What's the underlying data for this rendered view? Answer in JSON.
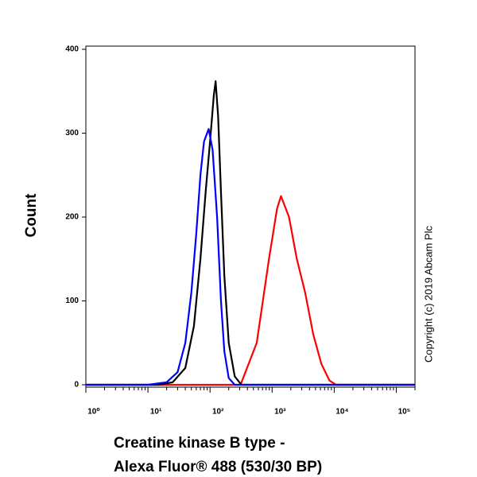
{
  "chart_data": {
    "type": "line",
    "ylabel": "Count",
    "xlabel": [
      "Creatine kinase B type -",
      "Alexa Fluor® 488 (530/30 BP)"
    ],
    "annotation": "Copyright (c) 2019 Abcam Plc",
    "xscale": "log",
    "xlim": [
      1,
      200000
    ],
    "ylim": [
      0,
      400
    ],
    "xticks": [
      {
        "value": 1,
        "label": "10⁰"
      },
      {
        "value": 10,
        "label": "10¹"
      },
      {
        "value": 100,
        "label": "10²"
      },
      {
        "value": 1000,
        "label": "10³"
      },
      {
        "value": 10000,
        "label": "10⁴"
      },
      {
        "value": 100000,
        "label": "10⁵"
      }
    ],
    "yticks": [
      0,
      100,
      200,
      300,
      400
    ],
    "series": [
      {
        "color": "#ff0000",
        "x": [
          1,
          310,
          565,
          890,
          1200,
          1390,
          1870,
          2500,
          3400,
          4600,
          6200,
          8400,
          10700,
          200000
        ],
        "values": [
          0,
          0,
          50,
          150,
          210,
          225,
          200,
          150,
          110,
          60,
          25,
          5,
          0,
          0
        ]
      },
      {
        "color": "#000000",
        "x": [
          1,
          15,
          25,
          40,
          55,
          70,
          85,
          100,
          115,
          123,
          135,
          150,
          170,
          200,
          250,
          320,
          200000
        ],
        "values": [
          0,
          0,
          3,
          20,
          70,
          150,
          230,
          290,
          345,
          362,
          320,
          230,
          130,
          50,
          10,
          0,
          0
        ]
      },
      {
        "color": "#0000ff",
        "x": [
          1,
          10,
          20,
          30,
          40,
          50,
          60,
          70,
          80,
          95,
          110,
          130,
          150,
          170,
          200,
          250,
          200000
        ],
        "values": [
          0,
          0,
          3,
          15,
          50,
          110,
          180,
          250,
          290,
          305,
          280,
          200,
          100,
          40,
          8,
          0,
          0
        ]
      }
    ]
  }
}
